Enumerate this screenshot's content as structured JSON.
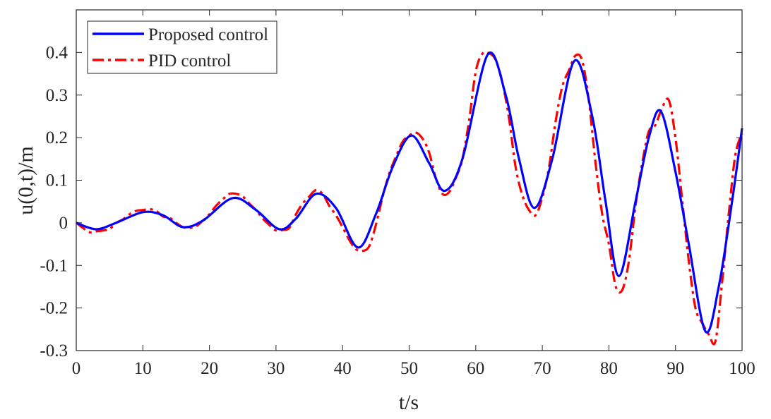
{
  "chart_data": {
    "type": "line",
    "title": "",
    "xlabel": "t/s",
    "ylabel": "u(0,t)/m",
    "xlim": [
      0,
      100
    ],
    "ylim": [
      -0.3,
      0.5
    ],
    "xticks": [
      0,
      10,
      20,
      30,
      40,
      50,
      60,
      70,
      80,
      90,
      100
    ],
    "xtick_labels": [
      "0",
      "10",
      "20",
      "30",
      "40",
      "50",
      "60",
      "70",
      "80",
      "90",
      "100"
    ],
    "yticks": [
      -0.3,
      -0.2,
      -0.1,
      0,
      0.1,
      0.2,
      0.3,
      0.4
    ],
    "ytick_labels": [
      "-0.3",
      "-0.2",
      "-0.1",
      "0",
      "0.1",
      "0.2",
      "0.3",
      "0.4"
    ],
    "grid": false,
    "legend_position": "top-left",
    "series": [
      {
        "name": "Proposed control",
        "color": "#0000ff",
        "style": "solid",
        "x": [
          0,
          3,
          6,
          10,
          13,
          16,
          19,
          23.5,
          27,
          30.5,
          33,
          36,
          39,
          42.3,
          45,
          47.5,
          50.3,
          53,
          55.3,
          58,
          61.8,
          64.5,
          66.5,
          68.8,
          71.5,
          74.8,
          77.5,
          79.5,
          81.5,
          84,
          86,
          87.8,
          90,
          92,
          94.5,
          96.5,
          98.5,
          100
        ],
        "y": [
          0,
          -0.015,
          0,
          0.025,
          0.018,
          -0.01,
          0.005,
          0.058,
          0.03,
          -0.015,
          0.01,
          0.068,
          0.035,
          -0.058,
          0.02,
          0.13,
          0.205,
          0.14,
          0.075,
          0.15,
          0.395,
          0.3,
          0.15,
          0.035,
          0.15,
          0.38,
          0.25,
          0.05,
          -0.125,
          0.05,
          0.2,
          0.262,
          0.12,
          -0.05,
          -0.255,
          -0.15,
          0.05,
          0.222
        ]
      },
      {
        "name": "PID control",
        "color": "#ff0000",
        "style": "dash-dot",
        "x": [
          0,
          1,
          2,
          3,
          4,
          5,
          6,
          7,
          8,
          9,
          10,
          11,
          12,
          13,
          14,
          15,
          16,
          17,
          18,
          19,
          20,
          21,
          22,
          23,
          24,
          25,
          26,
          27,
          28,
          29,
          30,
          31,
          32,
          33,
          34,
          35,
          36,
          37,
          38,
          39,
          40,
          41,
          42,
          43,
          44,
          45,
          46,
          47,
          48,
          49,
          50,
          51,
          52,
          53,
          54,
          55,
          56,
          57,
          58,
          59,
          60,
          61,
          62,
          63,
          64,
          65,
          66,
          67,
          68,
          69,
          70,
          71,
          72,
          73,
          74,
          75,
          76,
          77,
          78,
          79,
          80,
          81,
          82,
          83,
          84,
          85,
          86,
          87,
          88,
          89,
          90,
          91,
          92,
          93,
          94,
          95,
          96,
          97,
          98,
          99,
          100
        ],
        "y": [
          0,
          -0.012,
          -0.022,
          -0.02,
          -0.018,
          -0.015,
          0,
          0.008,
          0.02,
          0.028,
          0.03,
          0.032,
          0.028,
          0.015,
          0.012,
          0,
          -0.01,
          -0.012,
          -0.008,
          0.005,
          0.02,
          0.04,
          0.055,
          0.068,
          0.068,
          0.062,
          0.045,
          0.03,
          0.01,
          -0.005,
          -0.018,
          -0.017,
          -0.012,
          0.02,
          0.045,
          0.062,
          0.077,
          0.068,
          0.04,
          0.018,
          -0.01,
          -0.04,
          -0.062,
          -0.066,
          -0.055,
          -0.005,
          0.06,
          0.115,
          0.155,
          0.19,
          0.205,
          0.212,
          0.198,
          0.165,
          0.105,
          0.068,
          0.072,
          0.105,
          0.15,
          0.24,
          0.355,
          0.397,
          0.398,
          0.382,
          0.33,
          0.245,
          0.13,
          0.065,
          0.03,
          0.018,
          0.06,
          0.13,
          0.238,
          0.32,
          0.358,
          0.393,
          0.38,
          0.285,
          0.14,
          0.02,
          -0.05,
          -0.148,
          -0.158,
          -0.09,
          0.04,
          0.14,
          0.215,
          0.23,
          0.27,
          0.288,
          0.2,
          0.055,
          -0.09,
          -0.2,
          -0.235,
          -0.262,
          -0.278,
          -0.14,
          0.02,
          0.16,
          0.21
        ]
      }
    ]
  }
}
